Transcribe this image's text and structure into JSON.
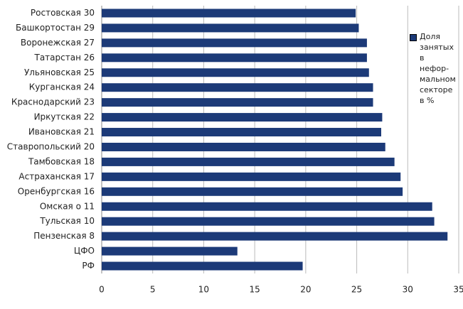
{
  "chart_data": {
    "type": "hbar",
    "categories": [
      "Ростовская 30",
      "Башкортостан 29",
      "Воронежская 27",
      "Татарстан 26",
      "Ульяновская 25",
      "Курганская 24",
      "Краснодарский 23",
      "Иркутская 22",
      "Ивановская 21",
      "Ставропольский 20",
      "Тамбовская 18",
      "Астраханская 17",
      "Оренбургская 16",
      "Омская о 11",
      "Тульская 10",
      "Пензенская 8",
      "ЦФО",
      "РФ"
    ],
    "series": [
      {
        "name": "Доля занятых в нефор-мальном секторе в %",
        "color": "#1c3a78",
        "values": [
          24.9,
          25.2,
          26.0,
          26.0,
          26.2,
          26.6,
          26.6,
          27.5,
          27.4,
          27.8,
          28.7,
          29.3,
          29.5,
          32.4,
          32.6,
          33.9,
          13.3,
          19.7
        ]
      }
    ],
    "xlim": [
      0,
      35
    ],
    "xticks": [
      0,
      5,
      10,
      15,
      20,
      25,
      30,
      35
    ],
    "grid": true,
    "legend": "right"
  }
}
